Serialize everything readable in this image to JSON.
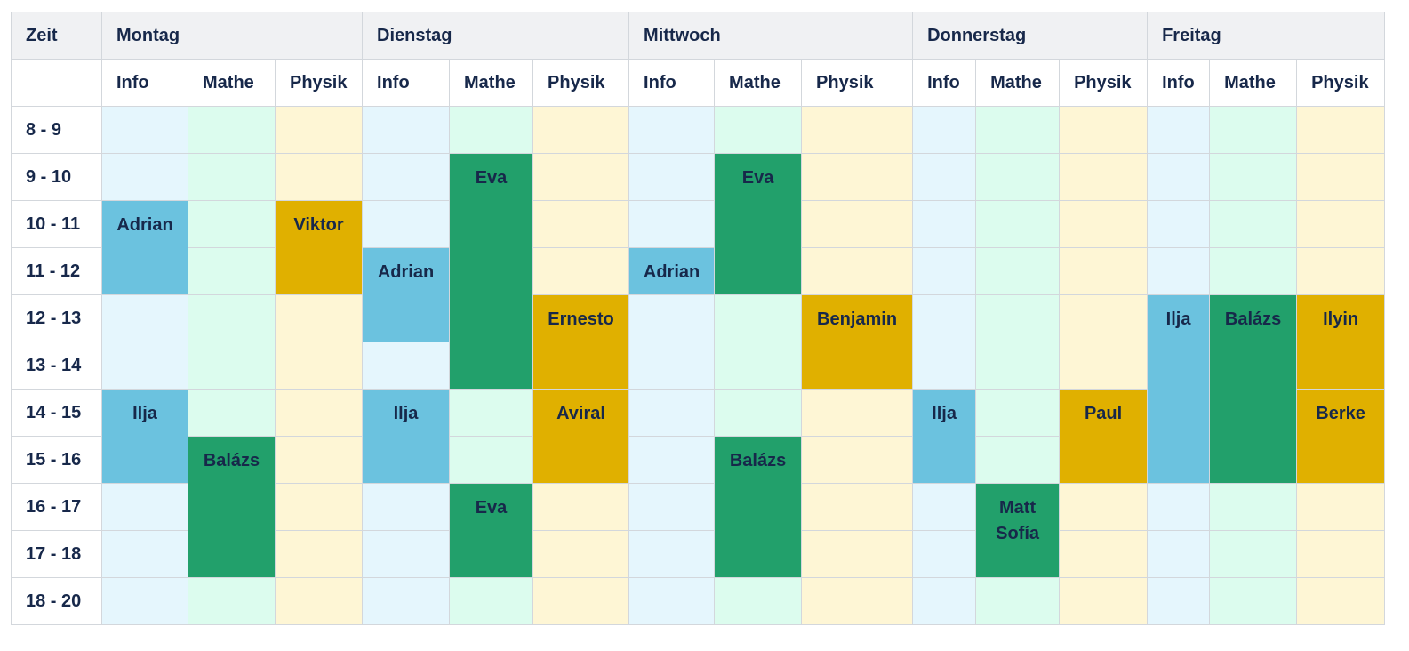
{
  "header": {
    "time_label": "Zeit"
  },
  "subjects": [
    "Info",
    "Mathe",
    "Physik"
  ],
  "colors": {
    "Info": {
      "empty": "#e5f6fd",
      "event": "#6bc2df"
    },
    "Mathe": {
      "empty": "#dcfcee",
      "event": "#22a06b"
    },
    "Physik": {
      "empty": "#fef6d5",
      "event": "#e0b000"
    }
  },
  "times": [
    "8 - 9",
    "9 - 10",
    "10 - 11",
    "11 - 12",
    "12 - 13",
    "13 - 14",
    "14 - 15",
    "15 - 16",
    "16 - 17",
    "17 - 18",
    "18 - 20"
  ],
  "days": [
    {
      "name": "Montag",
      "events": {
        "Info": [
          {
            "start": "10 - 11",
            "span": 2,
            "names": [
              "Adrian"
            ]
          },
          {
            "start": "14 - 15",
            "span": 2,
            "names": [
              "Ilja"
            ]
          }
        ],
        "Mathe": [
          {
            "start": "15 - 16",
            "span": 3,
            "names": [
              "Balázs"
            ]
          }
        ],
        "Physik": [
          {
            "start": "10 - 11",
            "span": 2,
            "names": [
              "Viktor"
            ]
          }
        ]
      }
    },
    {
      "name": "Dienstag",
      "events": {
        "Info": [
          {
            "start": "11 - 12",
            "span": 2,
            "names": [
              "Adrian"
            ]
          },
          {
            "start": "14 - 15",
            "span": 2,
            "names": [
              "Ilja"
            ]
          }
        ],
        "Mathe": [
          {
            "start": "9 - 10",
            "span": 5,
            "names": [
              "Eva"
            ]
          },
          {
            "start": "16 - 17",
            "span": 2,
            "names": [
              "Eva"
            ]
          }
        ],
        "Physik": [
          {
            "start": "12 - 13",
            "span": 2,
            "names": [
              "Ernesto"
            ]
          },
          {
            "start": "14 - 15",
            "span": 2,
            "names": [
              "Aviral"
            ]
          }
        ]
      }
    },
    {
      "name": "Mittwoch",
      "events": {
        "Info": [
          {
            "start": "11 - 12",
            "span": 1,
            "names": [
              "Adrian"
            ]
          }
        ],
        "Mathe": [
          {
            "start": "9 - 10",
            "span": 3,
            "names": [
              "Eva"
            ]
          },
          {
            "start": "15 - 16",
            "span": 3,
            "names": [
              "Balázs"
            ]
          }
        ],
        "Physik": [
          {
            "start": "12 - 13",
            "span": 2,
            "names": [
              "Benjamin"
            ]
          }
        ]
      }
    },
    {
      "name": "Donnerstag",
      "events": {
        "Info": [
          {
            "start": "14 - 15",
            "span": 2,
            "names": [
              "Ilja"
            ]
          }
        ],
        "Mathe": [
          {
            "start": "16 - 17",
            "span": 2,
            "names": [
              "Matt",
              "Sofía"
            ]
          }
        ],
        "Physik": [
          {
            "start": "14 - 15",
            "span": 2,
            "names": [
              "Paul"
            ]
          }
        ]
      }
    },
    {
      "name": "Freitag",
      "events": {
        "Info": [
          {
            "start": "12 - 13",
            "span": 4,
            "names": [
              "Ilja"
            ]
          }
        ],
        "Mathe": [
          {
            "start": "12 - 13",
            "span": 4,
            "names": [
              "Balázs"
            ]
          }
        ],
        "Physik": [
          {
            "start": "12 - 13",
            "span": 2,
            "names": [
              "Ilyin"
            ]
          },
          {
            "start": "14 - 15",
            "span": 2,
            "names": [
              "Berke"
            ]
          }
        ]
      }
    }
  ]
}
